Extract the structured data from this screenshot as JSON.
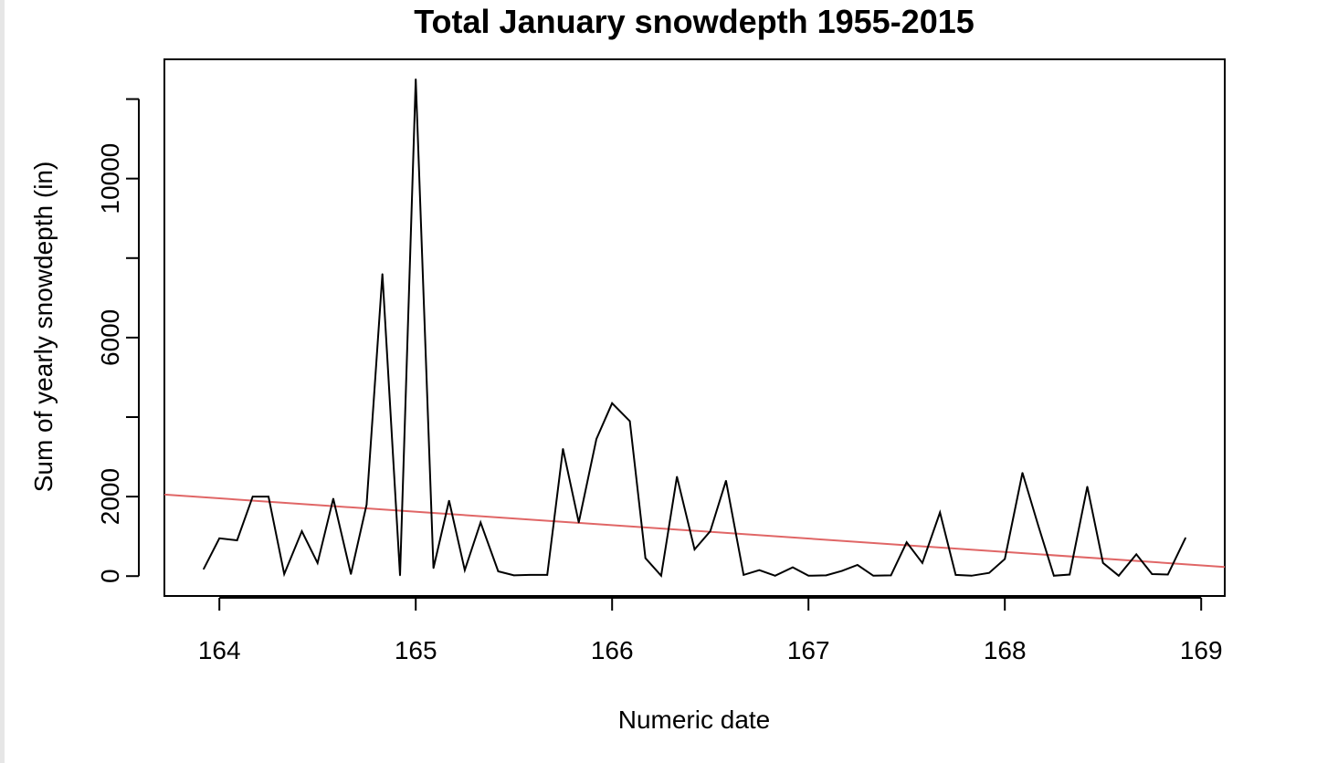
{
  "chart_data": {
    "type": "line",
    "title": "Total January snowdepth 1955-2015",
    "xlabel": "Numeric date",
    "ylabel": "Sum of yearly snowdepth (in)",
    "xlim": [
      163.72,
      169.12
    ],
    "ylim": [
      -500,
      13000
    ],
    "x_ticks": [
      164,
      165,
      166,
      167,
      168,
      169
    ],
    "y_ticks": [
      0,
      2000,
      4000,
      6000,
      8000,
      10000,
      12000
    ],
    "y_tick_labels": [
      "0",
      "2000",
      "",
      "6000",
      "",
      "10000",
      ""
    ],
    "series": [
      {
        "color": "#000000",
        "x": [
          163.92,
          164.0,
          164.09,
          164.17,
          164.25,
          164.33,
          164.42,
          164.5,
          164.58,
          164.67,
          164.75,
          164.83,
          164.92,
          165.0,
          165.09,
          165.17,
          165.25,
          165.33,
          165.42,
          165.5,
          165.58,
          165.67,
          165.75,
          165.83,
          165.92,
          166.0,
          166.09,
          166.17,
          166.25,
          166.33,
          166.42,
          166.5,
          166.58,
          166.67,
          166.75,
          166.83,
          166.92,
          167.0,
          167.09,
          167.17,
          167.25,
          167.33,
          167.42,
          167.5,
          167.58,
          167.67,
          167.75,
          167.83,
          167.92,
          168.0,
          168.09,
          168.17,
          168.25,
          168.33,
          168.42,
          168.5,
          168.58,
          168.67,
          168.75,
          168.83,
          168.92
        ],
        "values": [
          180,
          950,
          900,
          2000,
          2000,
          50,
          1130,
          330,
          1950,
          50,
          1800,
          7600,
          20,
          12500,
          200,
          1900,
          150,
          1350,
          120,
          20,
          30,
          30,
          3200,
          1350,
          3450,
          4350,
          3900,
          450,
          10,
          2500,
          670,
          1130,
          2400,
          30,
          150,
          10,
          220,
          10,
          20,
          130,
          280,
          10,
          20,
          850,
          330,
          1600,
          30,
          10,
          80,
          430,
          2600,
          1280,
          10,
          40,
          2250,
          330,
          10,
          550,
          50,
          40,
          960
        ]
      }
    ],
    "trend_line": {
      "color": "#e06666",
      "x": [
        163.72,
        169.12
      ],
      "values": [
        2050,
        230
      ]
    },
    "grid": false
  }
}
